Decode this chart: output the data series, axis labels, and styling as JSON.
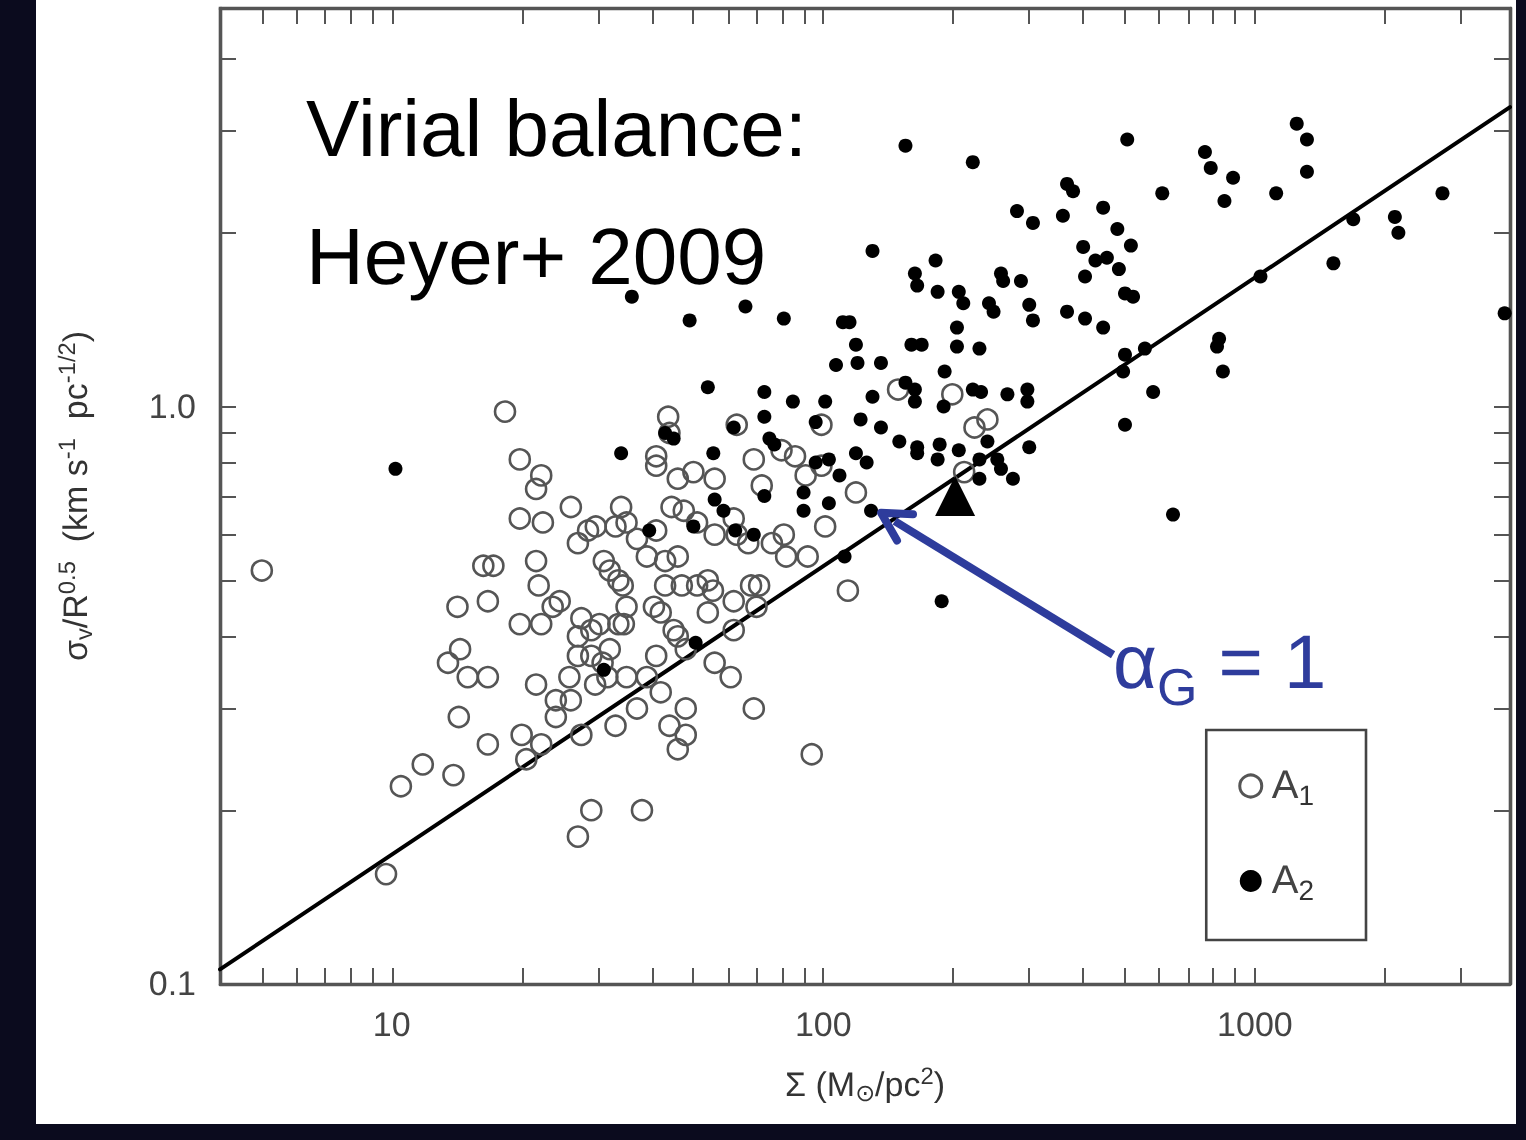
{
  "chart_data": {
    "type": "scatter",
    "title": "Virial balance: Heyer+ 2009",
    "xlabel": "Σ (M$_{⊙}$/pc$^{2}$)",
    "ylabel": "σ$_{v}$/R$^{0.5}$  (km s$^{-1}$  pc$^{-1/2}$)",
    "log": "xy",
    "grid": false,
    "legend": "bottom right",
    "xlim": [
      4,
      3900
    ],
    "ylim": [
      0.1,
      4.9
    ],
    "xticks": [
      {
        "value": 5,
        "label": null
      },
      {
        "value": 6,
        "label": null
      },
      {
        "value": 7,
        "label": null
      },
      {
        "value": 8,
        "label": null
      },
      {
        "value": 9,
        "label": null
      },
      10,
      {
        "value": 20,
        "label": null
      },
      {
        "value": 30,
        "label": null
      },
      {
        "value": 40,
        "label": null
      },
      {
        "value": 50,
        "label": null
      },
      {
        "value": 60,
        "label": null
      },
      {
        "value": 70,
        "label": null
      },
      {
        "value": 80,
        "label": null
      },
      {
        "value": 90,
        "label": null
      },
      100,
      {
        "value": 200,
        "label": null
      },
      {
        "value": 300,
        "label": null
      },
      {
        "value": 400,
        "label": null
      },
      {
        "value": 500,
        "label": null
      },
      {
        "value": 600,
        "label": null
      },
      {
        "value": 700,
        "label": null
      },
      {
        "value": 800,
        "label": null
      },
      {
        "value": 900,
        "label": null
      },
      1000,
      {
        "value": 2000,
        "label": null
      },
      {
        "value": 3000,
        "label": null
      }
    ],
    "yticks": [
      0.1,
      {
        "value": 0.2,
        "label": null
      },
      {
        "value": 0.3,
        "label": null
      },
      {
        "value": 0.4,
        "label": null
      },
      {
        "value": 0.5,
        "label": null
      },
      {
        "value": 0.6,
        "label": null
      },
      {
        "value": 0.7,
        "label": null
      },
      {
        "value": 0.8,
        "label": null
      },
      {
        "value": 0.9,
        "label": null
      },
      {
        "value": 1,
        "label": "1.0"
      },
      {
        "value": 2,
        "label": null
      },
      {
        "value": 3,
        "label": null
      },
      {
        "value": 4,
        "label": null
      }
    ],
    "annotations": [
      {
        "text": "α$_{G}$ = 1",
        "x": 158,
        "y": 0.66
      }
    ],
    "series": [
      {
        "name": "A$_{1}$",
        "marker": "open circle",
        "color": "#555555",
        "x": [
          5.0,
          19.8,
          22.4,
          26,
          34,
          27,
          28.5,
          29.7,
          33,
          37,
          35,
          44.5,
          47.5,
          51,
          56,
          62,
          63,
          67,
          76,
          81,
          101,
          16.3,
          17.2,
          21.6,
          21.9,
          23.6,
          24.5,
          31,
          32,
          33.5,
          34.3,
          35,
          39,
          41,
          43,
          46,
          43,
          47,
          51,
          54,
          55.5,
          62,
          68,
          71,
          70,
          82,
          92,
          14.2,
          16.7,
          19.8,
          22.2,
          27.5,
          27,
          29,
          30.3,
          33.5,
          34.5,
          32,
          27,
          29,
          30.8,
          40.5,
          42,
          45,
          46,
          54,
          62,
          48,
          41,
          56,
          61,
          14.4,
          13.5,
          15,
          16.7,
          21.6,
          24,
          25.8,
          26,
          29.6,
          31.6,
          24,
          35,
          39,
          42,
          37,
          33,
          27.5,
          20,
          22.2,
          16.7,
          14.3,
          11.8,
          10.5,
          13.9,
          20.5,
          29,
          27,
          38,
          44,
          48,
          48,
          46,
          69,
          94,
          9.7,
          114,
          18.3,
          19.8,
          22.2,
          21.6,
          43.7,
          44,
          41,
          41,
          46,
          50,
          56,
          63,
          69,
          80,
          86,
          91,
          99,
          99,
          72,
          149,
          199,
          240,
          224,
          212,
          119
        ],
        "values": [
          0.52,
          0.64,
          0.63,
          0.67,
          0.67,
          0.58,
          0.61,
          0.62,
          0.62,
          0.59,
          0.63,
          0.67,
          0.66,
          0.63,
          0.6,
          0.64,
          0.6,
          0.58,
          0.58,
          0.6,
          0.62,
          0.53,
          0.53,
          0.54,
          0.49,
          0.45,
          0.46,
          0.54,
          0.52,
          0.5,
          0.49,
          0.45,
          0.55,
          0.61,
          0.54,
          0.55,
          0.49,
          0.49,
          0.49,
          0.5,
          0.48,
          0.46,
          0.49,
          0.49,
          0.45,
          0.55,
          0.55,
          0.45,
          0.46,
          0.42,
          0.42,
          0.43,
          0.4,
          0.41,
          0.42,
          0.42,
          0.42,
          0.38,
          0.37,
          0.37,
          0.36,
          0.45,
          0.44,
          0.41,
          0.4,
          0.44,
          0.41,
          0.38,
          0.37,
          0.36,
          0.34,
          0.38,
          0.36,
          0.34,
          0.34,
          0.33,
          0.31,
          0.34,
          0.31,
          0.33,
          0.34,
          0.29,
          0.34,
          0.34,
          0.32,
          0.3,
          0.28,
          0.27,
          0.27,
          0.26,
          0.26,
          0.29,
          0.24,
          0.22,
          0.23,
          0.245,
          0.2,
          0.18,
          0.2,
          0.28,
          0.3,
          0.27,
          0.255,
          0.3,
          0.25,
          0.155,
          0.48,
          0.98,
          0.81,
          0.76,
          0.72,
          0.96,
          0.9,
          0.82,
          0.79,
          0.75,
          0.77,
          0.75,
          0.93,
          0.81,
          0.84,
          0.82,
          0.76,
          0.93,
          0.79,
          0.73,
          1.07,
          1.05,
          0.95,
          0.92,
          0.77,
          0.71
        ]
      },
      {
        "name": "A$_{2}$",
        "marker": "circle",
        "color": "#000000",
        "x": [
          36,
          49,
          66,
          81,
          10.2,
          34,
          54,
          73,
          85,
          73,
          101,
          107,
          111,
          155,
          222,
          506,
          766,
          790,
          890,
          1250,
          1320,
          1320,
          1120,
          850,
          610,
          367,
          379,
          281,
          306,
          359,
          445,
          480,
          516,
          400,
          427,
          454,
          484,
          404,
          500,
          522,
          130,
          163,
          165,
          182,
          184,
          206,
          211,
          242,
          248,
          258,
          261,
          287,
          300,
          306,
          367,
          404,
          445,
          500,
          556,
          495,
          581,
          500,
          826,
          817,
          843,
          1030,
          1520,
          1690,
          2110,
          2150,
          2720,
          3790,
          115,
          120,
          136,
          160,
          169,
          204,
          204,
          230,
          191,
          155,
          163,
          130,
          163,
          190,
          222,
          232,
          267,
          297,
          297,
          122,
          136,
          150,
          165,
          165,
          186,
          184,
          206,
          240,
          300,
          119,
          126,
          230,
          253,
          258,
          275,
          230,
          129,
          646,
          188,
          112,
          39.5,
          50,
          31,
          50.6,
          58.7,
          62.5,
          69,
          90,
          103,
          43,
          45,
          55.6,
          62,
          75,
          77,
          96,
          96,
          103,
          109,
          56,
          73,
          90,
          119
        ],
        "values": [
          1.55,
          1.41,
          1.49,
          1.42,
          0.78,
          0.83,
          1.08,
          1.06,
          1.02,
          0.96,
          1.02,
          1.18,
          1.4,
          2.83,
          2.65,
          2.9,
          2.76,
          2.59,
          2.49,
          3.09,
          2.9,
          2.55,
          2.34,
          2.27,
          2.34,
          2.43,
          2.36,
          2.18,
          2.08,
          2.14,
          2.21,
          2.03,
          1.9,
          1.89,
          1.79,
          1.81,
          1.73,
          1.68,
          1.57,
          1.55,
          1.86,
          1.7,
          1.62,
          1.79,
          1.58,
          1.58,
          1.51,
          1.51,
          1.46,
          1.7,
          1.65,
          1.65,
          1.5,
          1.41,
          1.46,
          1.42,
          1.37,
          1.23,
          1.26,
          1.15,
          1.06,
          0.93,
          1.31,
          1.27,
          1.15,
          1.68,
          1.77,
          2.11,
          2.13,
          2.0,
          2.34,
          1.45,
          1.4,
          1.19,
          1.19,
          1.28,
          1.28,
          1.37,
          1.27,
          1.26,
          1.15,
          1.1,
          1.07,
          1.04,
          1.02,
          1.0,
          1.07,
          1.06,
          1.05,
          1.07,
          1.02,
          0.95,
          0.92,
          0.87,
          0.85,
          0.83,
          0.86,
          0.81,
          0.84,
          0.87,
          0.85,
          0.83,
          0.8,
          0.81,
          0.81,
          0.78,
          0.75,
          0.75,
          0.66,
          0.65,
          0.46,
          0.55,
          0.61,
          0.62,
          0.35,
          0.39,
          0.66,
          0.61,
          0.6,
          0.66,
          0.68,
          0.9,
          0.88,
          0.83,
          0.92,
          0.88,
          0.86,
          0.94,
          0.8,
          0.81,
          0.76,
          0.69,
          0.7,
          0.71,
          1.28
        ]
      },
      {
        "type": "line",
        "marker": "none",
        "line_style": "solid",
        "color": "#000000",
        "x": [
          4,
          3900
        ],
        "values": [
          0.106,
          3.3
        ]
      },
      {
        "marker": "triangle",
        "color": "#000000",
        "x": [
          202
        ],
        "values": [
          0.7
        ]
      }
    ]
  }
}
